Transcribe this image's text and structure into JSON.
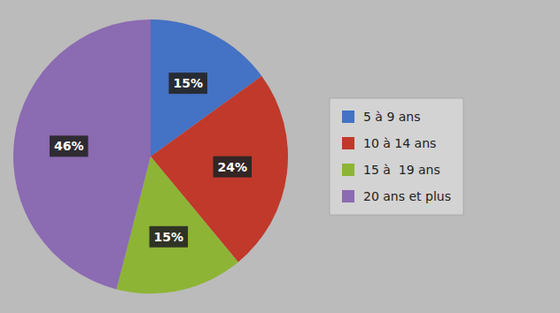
{
  "chart_data": {
    "type": "pie",
    "categories": [
      "5 à 9 ans",
      "10 à 14 ans",
      "15 à  19 ans",
      "20 ans et plus"
    ],
    "values": [
      15,
      24,
      15,
      46
    ],
    "value_labels": [
      "15%",
      "24%",
      "15%",
      "46%"
    ],
    "data_labels": true,
    "colors": [
      "#4472C4",
      "#C0392B",
      "#8DB435",
      "#8B6BB1"
    ],
    "legend": "right"
  }
}
